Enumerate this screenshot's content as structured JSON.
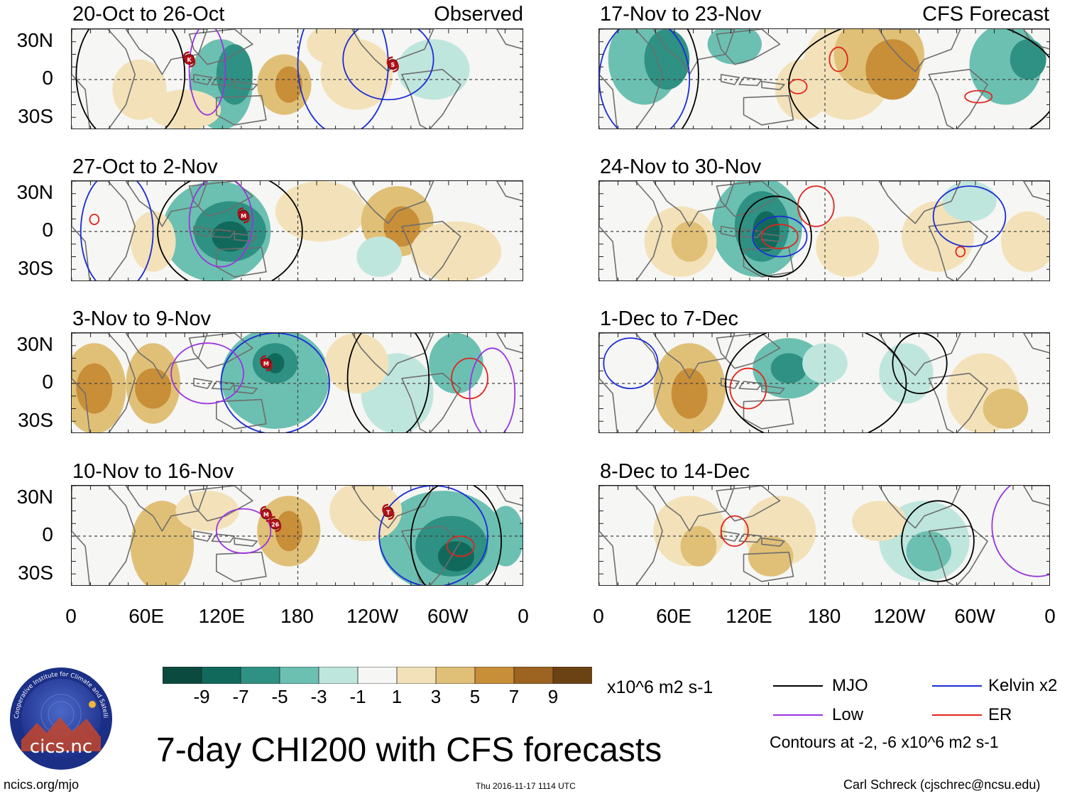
{
  "panels": {
    "left": [
      {
        "title": "20-Oct to 26-Oct",
        "tag": "Observed"
      },
      {
        "title": "27-Oct to 2-Nov",
        "tag": ""
      },
      {
        "title": "3-Nov to 9-Nov",
        "tag": ""
      },
      {
        "title": "10-Nov to 16-Nov",
        "tag": ""
      }
    ],
    "right": [
      {
        "title": "17-Nov to 23-Nov",
        "tag": "CFS Forecast"
      },
      {
        "title": "24-Nov to 30-Nov",
        "tag": ""
      },
      {
        "title": "1-Dec to 7-Dec",
        "tag": ""
      },
      {
        "title": "8-Dec to 14-Dec",
        "tag": ""
      }
    ]
  },
  "lat_labels": [
    "30N",
    "0",
    "30S"
  ],
  "lon_labels": [
    "0",
    "60E",
    "120E",
    "180",
    "120W",
    "60W",
    "0"
  ],
  "storm_markers": {
    "p0": [
      "K",
      "S"
    ],
    "p1": [
      "M"
    ],
    "p2": [
      "M"
    ],
    "p3": [
      "M",
      "26",
      "T"
    ]
  },
  "colorbar": {
    "ticks": [
      "-9",
      "-7",
      "-5",
      "-3",
      "-1",
      "1",
      "3",
      "5",
      "7",
      "9"
    ],
    "colors": [
      "#0b4a3e",
      "#11695c",
      "#2e9183",
      "#6cc0b1",
      "#bfe6dd",
      "#f6f6f4",
      "#f3e2b9",
      "#e0c077",
      "#c88e38",
      "#9c6420",
      "#6b4214"
    ],
    "units": "x10^6 m2 s-1"
  },
  "legend": {
    "mjo": "MJO",
    "kelvin": "Kelvin x2",
    "low": "Low",
    "er": "ER",
    "contours_note": "Contours at -2, -6 x10^6 m2 s-1",
    "colors": {
      "mjo": "#000000",
      "kelvin": "#1a2bd6",
      "low": "#9a33e0",
      "er": "#e0241c"
    }
  },
  "main_title": "7-day CHI200 with CFS forecasts",
  "logo_text": "cics.nc",
  "logo_ring_text": "Cooperative Institute for Climate and Satellites",
  "footer": {
    "left": "ncics.org/mjo",
    "center": "Thu 2016-11-17 1114 UTC",
    "right": "Carl Schreck (cjschrec@ncsu.edu)"
  }
}
